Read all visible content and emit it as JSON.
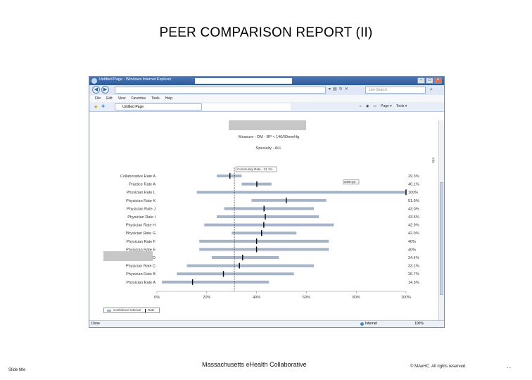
{
  "slide": {
    "title": "PEER COMPARISON REPORT (II)",
    "footer_left": "Slide title",
    "footer_brand_pre": "Massachusetts ",
    "footer_brand_e": "e",
    "footer_brand_post": "Health Collaborative",
    "footer_right": "© MAeHC.  All rights reserved.",
    "footer_page": "- -"
  },
  "browser": {
    "title": "Untitled Page - Windows Internet Explorer",
    "search_placeholder": "Live Search",
    "menu": [
      "File",
      "Edit",
      "View",
      "Favorites",
      "Tools",
      "Help"
    ],
    "tab_label": "Untitled Page",
    "commands": [
      "Page ▾",
      "Tools ▾"
    ],
    "status_left": "Done",
    "status_zone": "Internet",
    "status_zoom": "100%"
  },
  "chart_data": {
    "type": "bar",
    "measure_label": "Measure - DM - BP < 140/80mmHg",
    "specialty_label": "Specialty - ALL",
    "community_rate_label": "Community Rate - 31.1%",
    "community_rate": 31.1,
    "callout_label": "2008 Q3",
    "side_mark": "Info",
    "x_ticks": [
      "0%",
      "20%",
      "40%",
      "60%",
      "80%",
      "100%"
    ],
    "xlim": [
      0,
      100
    ],
    "legend": [
      "Confidence Interval",
      "Rate"
    ],
    "rows": [
      {
        "label": "Collaborative Rate A",
        "value_label": "29.3%",
        "rate": 29.3,
        "ci": [
          24,
          34
        ]
      },
      {
        "label": "Practice Rate A",
        "value_label": "40.1%",
        "rate": 40.1,
        "ci": [
          34,
          46
        ]
      },
      {
        "label": "Physician Rate L",
        "value_label": "100%",
        "rate": 100,
        "ci": [
          16,
          100
        ]
      },
      {
        "label": "Physician Rate K",
        "value_label": "51.9%",
        "rate": 51.9,
        "ci": [
          38,
          68
        ]
      },
      {
        "label": "Physician Rate J",
        "value_label": "43.0%",
        "rate": 43.0,
        "ci": [
          27,
          63
        ]
      },
      {
        "label": "Physician Rate I",
        "value_label": "43.5%",
        "rate": 43.5,
        "ci": [
          24,
          65
        ]
      },
      {
        "label": "Physician Rate H",
        "value_label": "42.9%",
        "rate": 42.9,
        "ci": [
          19,
          71
        ]
      },
      {
        "label": "Physician Rate G",
        "value_label": "42.0%",
        "rate": 42.0,
        "ci": [
          30,
          56
        ]
      },
      {
        "label": "Physician Rate F",
        "value_label": "40%",
        "rate": 40,
        "ci": [
          17,
          69
        ]
      },
      {
        "label": "Physician Rate E",
        "value_label": "40%",
        "rate": 40,
        "ci": [
          17,
          69
        ]
      },
      {
        "label": "Physician Rate D",
        "value_label": "34.4%",
        "rate": 34.4,
        "ci": [
          22,
          49
        ]
      },
      {
        "label": "Physician Rate C",
        "value_label": "33.1%",
        "rate": 33.1,
        "ci": [
          12,
          63
        ]
      },
      {
        "label": "Physician Rate B",
        "value_label": "26.7%",
        "rate": 26.7,
        "ci": [
          8,
          55
        ]
      },
      {
        "label": "Physician Rate A",
        "value_label": "14.3%",
        "rate": 14.3,
        "ci": [
          2,
          45
        ]
      }
    ]
  }
}
